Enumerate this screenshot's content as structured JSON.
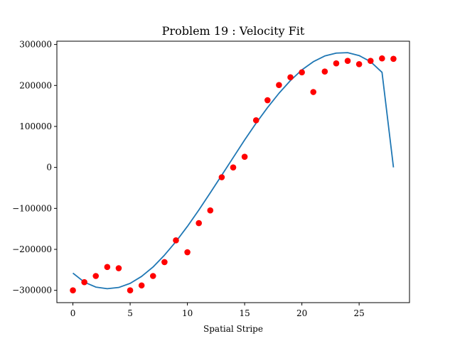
{
  "chart_data": {
    "type": "scatter",
    "title": "Problem 19 : Velocity Fit",
    "xlabel": "Spatial Stripe",
    "ylabel": "",
    "xlim": [
      -1.4,
      29.4
    ],
    "ylim": [
      -330000,
      308000
    ],
    "xticks": [
      0,
      5,
      10,
      15,
      20,
      25
    ],
    "yticks": [
      -300000,
      -200000,
      -100000,
      0,
      100000,
      200000,
      300000
    ],
    "grid": false,
    "series": [
      {
        "kind": "scatter",
        "color": "#ff0000",
        "x": [
          0,
          1,
          2,
          3,
          4,
          5,
          6,
          7,
          8,
          9,
          10,
          11,
          12,
          13,
          14,
          15,
          16,
          17,
          18,
          19,
          20,
          21,
          22,
          23,
          24,
          25,
          26,
          27,
          28
        ],
        "y": [
          -300000,
          -280000,
          -265000,
          -243000,
          -246000,
          -300000,
          -288000,
          -265000,
          -231000,
          -178000,
          -207000,
          -136000,
          -105000,
          -24000,
          0,
          26000,
          115000,
          164000,
          201000,
          220000,
          232000,
          184000,
          234000,
          254000,
          260000,
          252000,
          260000,
          266000,
          265000
        ]
      },
      {
        "kind": "line",
        "color": "#1f77b4",
        "x": [
          0,
          1,
          2,
          3,
          4,
          5,
          6,
          7,
          8,
          9,
          10,
          11,
          12,
          13,
          14,
          15,
          16,
          17,
          18,
          19,
          20,
          21,
          22,
          23,
          24,
          25,
          26,
          27,
          28
        ],
        "y": [
          -258000,
          -280000,
          -292000,
          -296000,
          -293000,
          -283000,
          -266000,
          -243000,
          -214000,
          -181000,
          -144000,
          -104000,
          -62000,
          -19000,
          24000,
          67000,
          108000,
          146000,
          181000,
          212000,
          238000,
          258000,
          272000,
          279000,
          280000,
          273000,
          258000,
          232000,
          0
        ]
      }
    ]
  }
}
